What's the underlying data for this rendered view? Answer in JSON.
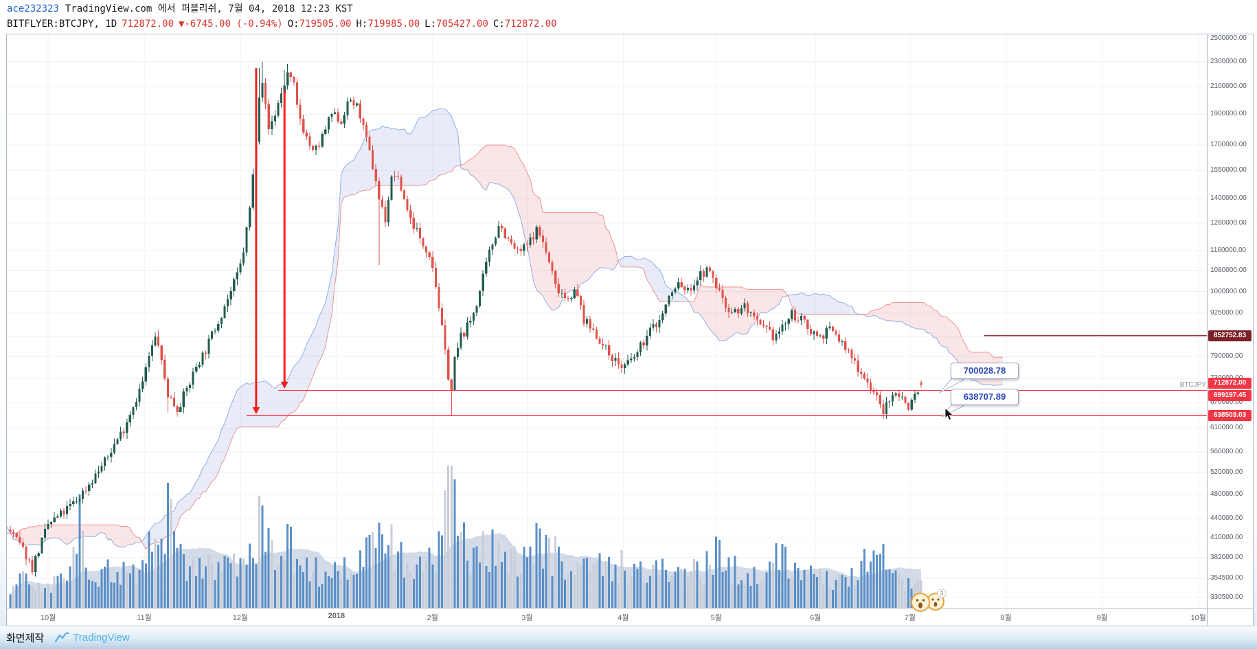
{
  "header": {
    "username": "ace232323",
    "publish_info": "TradingView.com 에서 퍼블리쉬, 7월 04, 2018 12:23 KST",
    "symbol": "BITFLYER:BTCJPY, 1D",
    "price": "712872.00",
    "change": "▼-6745.00 (-0.94%)",
    "ohlc": [
      {
        "k": "O:",
        "v": "719505.00"
      },
      {
        "k": "H:",
        "v": "719985.00"
      },
      {
        "k": "L:",
        "v": "705427.00"
      },
      {
        "k": "C:",
        "v": "712872.00"
      }
    ]
  },
  "footer": {
    "caption": "화면제작",
    "brand": "TradingView"
  },
  "chart_data": {
    "type": "candlestick",
    "symbol": "BITFLYER:BTCJPY",
    "interval": "1D",
    "scale": "log",
    "indicators": [
      "Ichimoku Cloud",
      "Volume",
      "Volume MA"
    ],
    "ohlc_readout": {
      "open": 719505.0,
      "high": 719985.0,
      "low": 705427.0,
      "close": 712872.0,
      "change": -6745.0,
      "change_pct": -0.94
    },
    "y_axis": {
      "top_price": 2537000,
      "bottom_price": 318400,
      "ticks": [
        2500000,
        2300000,
        2100000,
        1900000,
        1700000,
        1550000,
        1400000,
        1280000,
        1160000,
        1080000,
        1000000,
        925000,
        850000,
        790000,
        730000,
        670000,
        610000,
        560000,
        520000,
        480000,
        440000,
        410000,
        382000,
        354500,
        330500
      ]
    },
    "x_axis": {
      "labels": [
        {
          "text": "10월",
          "idx": 12
        },
        {
          "text": "11월",
          "idx": 42.5
        },
        {
          "text": "12월",
          "idx": 73
        },
        {
          "text": "2018",
          "idx": 103.5,
          "bold": true
        },
        {
          "text": "2월",
          "idx": 134
        },
        {
          "text": "3월",
          "idx": 164
        },
        {
          "text": "4월",
          "idx": 194.5
        },
        {
          "text": "5월",
          "idx": 224
        },
        {
          "text": "6월",
          "idx": 255.5
        },
        {
          "text": "7월",
          "idx": 285.5
        },
        {
          "text": "8월",
          "idx": 316
        },
        {
          "text": "9월",
          "idx": 346.5
        },
        {
          "text": "10월",
          "idx": 377
        }
      ]
    },
    "price_path": [
      [
        -90,
        320000
      ],
      [
        -80,
        305000
      ],
      [
        -70,
        330000
      ],
      [
        -62,
        370000
      ],
      [
        -55,
        420000
      ],
      [
        -48,
        470000
      ],
      [
        -42,
        520000
      ],
      [
        -38,
        490000
      ],
      [
        -34,
        440000
      ],
      [
        -30,
        400000
      ],
      [
        -27,
        358000
      ],
      [
        -25,
        338000
      ],
      [
        -23,
        378000
      ],
      [
        -20,
        408000
      ],
      [
        -17,
        392000
      ],
      [
        -14,
        410000
      ],
      [
        -10,
        428000
      ],
      [
        -7,
        442000
      ],
      [
        -4,
        430000
      ],
      [
        0,
        420000
      ],
      [
        3,
        400000
      ],
      [
        5,
        385000
      ],
      [
        7,
        368000
      ],
      [
        10,
        405000
      ],
      [
        12,
        430000
      ],
      [
        15,
        442000
      ],
      [
        18,
        455000
      ],
      [
        21,
        470000
      ],
      [
        24,
        490000
      ],
      [
        27,
        515000
      ],
      [
        30,
        540000
      ],
      [
        33,
        575000
      ],
      [
        36,
        610000
      ],
      [
        38,
        645000
      ],
      [
        40,
        680000
      ],
      [
        42,
        720000
      ],
      [
        44,
        790000
      ],
      [
        46,
        845000
      ],
      [
        47,
        830000
      ],
      [
        48,
        770000
      ],
      [
        50,
        690000
      ],
      [
        52,
        665000
      ],
      [
        53,
        655000
      ],
      [
        55,
        685000
      ],
      [
        57,
        720000
      ],
      [
        59,
        765000
      ],
      [
        62,
        810000
      ],
      [
        64,
        855000
      ],
      [
        66,
        900000
      ],
      [
        68,
        950000
      ],
      [
        70,
        1000000
      ],
      [
        72,
        1060000
      ],
      [
        73,
        1100000
      ],
      [
        74,
        1160000
      ],
      [
        75,
        1250000
      ],
      [
        76,
        1350000
      ],
      [
        77,
        1520000
      ],
      [
        78,
        1750000
      ],
      [
        79,
        2050000
      ],
      [
        80,
        2150000
      ],
      [
        81,
        1950000
      ],
      [
        82,
        1800000
      ],
      [
        83,
        1850000
      ],
      [
        84,
        1900000
      ],
      [
        85,
        1980000
      ],
      [
        86,
        2050000
      ],
      [
        87,
        2120000
      ],
      [
        88,
        2200000
      ],
      [
        89,
        2150000
      ],
      [
        90,
        2100000
      ],
      [
        91,
        1950000
      ],
      [
        93,
        1800000
      ],
      [
        95,
        1700000
      ],
      [
        96,
        1650000
      ],
      [
        98,
        1700000
      ],
      [
        99,
        1750000
      ],
      [
        100,
        1800000
      ],
      [
        102,
        1900000
      ],
      [
        104,
        1870000
      ],
      [
        105,
        1850000
      ],
      [
        106,
        1920000
      ],
      [
        108,
        2000000
      ],
      [
        110,
        1950000
      ],
      [
        111,
        1900000
      ],
      [
        112,
        1800000
      ],
      [
        114,
        1650000
      ],
      [
        116,
        1500000
      ],
      [
        117,
        1400000
      ],
      [
        118,
        1350000
      ],
      [
        119,
        1300000
      ],
      [
        120,
        1400000
      ],
      [
        121,
        1500000
      ],
      [
        122,
        1530000
      ],
      [
        124,
        1450000
      ],
      [
        126,
        1350000
      ],
      [
        127,
        1300000
      ],
      [
        129,
        1250000
      ],
      [
        130,
        1200000
      ],
      [
        132,
        1170000
      ],
      [
        133,
        1150000
      ],
      [
        134,
        1100000
      ],
      [
        136,
        950000
      ],
      [
        138,
        800000
      ],
      [
        139,
        740000
      ],
      [
        140,
        700000
      ],
      [
        141,
        780000
      ],
      [
        143,
        850000
      ],
      [
        145,
        880000
      ],
      [
        146,
        900000
      ],
      [
        148,
        960000
      ],
      [
        149,
        1000000
      ],
      [
        151,
        1100000
      ],
      [
        152,
        1150000
      ],
      [
        154,
        1230000
      ],
      [
        155,
        1280000
      ],
      [
        157,
        1230000
      ],
      [
        158,
        1200000
      ],
      [
        160,
        1170000
      ],
      [
        161,
        1150000
      ],
      [
        163,
        1170000
      ],
      [
        164,
        1180000
      ],
      [
        166,
        1230000
      ],
      [
        167,
        1250000
      ],
      [
        169,
        1200000
      ],
      [
        170,
        1150000
      ],
      [
        172,
        1070000
      ],
      [
        173,
        1020000
      ],
      [
        175,
        1000000
      ],
      [
        176,
        980000
      ],
      [
        178,
        990000
      ],
      [
        179,
        1000000
      ],
      [
        181,
        950000
      ],
      [
        182,
        900000
      ],
      [
        184,
        880000
      ],
      [
        185,
        870000
      ],
      [
        187,
        840000
      ],
      [
        188,
        820000
      ],
      [
        190,
        800000
      ],
      [
        191,
        790000
      ],
      [
        193,
        770000
      ],
      [
        194,
        760000
      ],
      [
        196,
        770000
      ],
      [
        197,
        780000
      ],
      [
        199,
        800000
      ],
      [
        200,
        820000
      ],
      [
        202,
        850000
      ],
      [
        203,
        870000
      ],
      [
        205,
        890000
      ],
      [
        206,
        900000
      ],
      [
        208,
        950000
      ],
      [
        209,
        980000
      ],
      [
        211,
        1010000
      ],
      [
        212,
        1030000
      ],
      [
        214,
        1010000
      ],
      [
        215,
        1000000
      ],
      [
        217,
        1030000
      ],
      [
        218,
        1050000
      ],
      [
        220,
        1070000
      ],
      [
        221,
        1080000
      ],
      [
        223,
        1050000
      ],
      [
        224,
        1020000
      ],
      [
        226,
        980000
      ],
      [
        227,
        950000
      ],
      [
        229,
        935000
      ],
      [
        230,
        930000
      ],
      [
        232,
        940000
      ],
      [
        233,
        950000
      ],
      [
        235,
        920000
      ],
      [
        236,
        900000
      ],
      [
        238,
        880000
      ],
      [
        239,
        870000
      ],
      [
        241,
        860000
      ],
      [
        242,
        850000
      ],
      [
        244,
        865000
      ],
      [
        245,
        880000
      ],
      [
        247,
        905000
      ],
      [
        248,
        920000
      ],
      [
        250,
        910000
      ],
      [
        251,
        900000
      ],
      [
        253,
        880000
      ],
      [
        254,
        870000
      ],
      [
        256,
        855000
      ],
      [
        257,
        850000
      ],
      [
        259,
        865000
      ],
      [
        260,
        870000
      ],
      [
        262,
        855000
      ],
      [
        263,
        840000
      ],
      [
        265,
        815000
      ],
      [
        266,
        800000
      ],
      [
        268,
        775000
      ],
      [
        269,
        760000
      ],
      [
        271,
        735000
      ],
      [
        272,
        720000
      ],
      [
        274,
        695000
      ],
      [
        275,
        680000
      ],
      [
        276,
        660000
      ],
      [
        277,
        650000
      ],
      [
        278,
        660000
      ],
      [
        279,
        670000
      ],
      [
        280,
        685000
      ],
      [
        281,
        700000
      ],
      [
        282,
        690000
      ],
      [
        283,
        680000
      ],
      [
        284,
        670000
      ],
      [
        285,
        660000
      ],
      [
        286,
        675000
      ],
      [
        287,
        690000
      ],
      [
        288,
        700000
      ],
      [
        289,
        712872
      ]
    ],
    "wick_overrides": [
      [
        46,
        "high",
        862000
      ],
      [
        50,
        "low",
        645000
      ],
      [
        79,
        "high",
        2245000
      ],
      [
        80,
        "high",
        2300000
      ],
      [
        87,
        "high",
        2230000
      ],
      [
        88,
        "high",
        2280000
      ],
      [
        117,
        "low",
        1100000
      ],
      [
        140,
        "low",
        638000
      ],
      [
        277,
        "low",
        640000
      ]
    ],
    "volume_path": [
      [
        0,
        0.18
      ],
      [
        4,
        0.22
      ],
      [
        8,
        0.15
      ],
      [
        12,
        0.18
      ],
      [
        16,
        0.25
      ],
      [
        20,
        0.5
      ],
      [
        22,
        0.75
      ],
      [
        24,
        0.4
      ],
      [
        28,
        0.25
      ],
      [
        32,
        0.3
      ],
      [
        36,
        0.3
      ],
      [
        40,
        0.28
      ],
      [
        44,
        0.5
      ],
      [
        47,
        0.45
      ],
      [
        50,
        0.85
      ],
      [
        53,
        0.5
      ],
      [
        56,
        0.3
      ],
      [
        60,
        0.35
      ],
      [
        64,
        0.3
      ],
      [
        68,
        0.35
      ],
      [
        72,
        0.4
      ],
      [
        76,
        0.5
      ],
      [
        80,
        0.7
      ],
      [
        83,
        0.45
      ],
      [
        86,
        0.4
      ],
      [
        88,
        0.5
      ],
      [
        90,
        0.45
      ],
      [
        93,
        0.35
      ],
      [
        96,
        0.3
      ],
      [
        100,
        0.28
      ],
      [
        104,
        0.3
      ],
      [
        108,
        0.32
      ],
      [
        112,
        0.4
      ],
      [
        115,
        0.45
      ],
      [
        117,
        0.55
      ],
      [
        120,
        0.5
      ],
      [
        122,
        0.45
      ],
      [
        126,
        0.35
      ],
      [
        130,
        0.32
      ],
      [
        134,
        0.35
      ],
      [
        137,
        0.6
      ],
      [
        140,
        1.0
      ],
      [
        142,
        0.55
      ],
      [
        145,
        0.45
      ],
      [
        148,
        0.4
      ],
      [
        151,
        0.45
      ],
      [
        153,
        0.5
      ],
      [
        155,
        0.45
      ],
      [
        158,
        0.4
      ],
      [
        161,
        0.38
      ],
      [
        164,
        0.42
      ],
      [
        167,
        0.5
      ],
      [
        170,
        0.48
      ],
      [
        173,
        0.42
      ],
      [
        176,
        0.38
      ],
      [
        179,
        0.35
      ],
      [
        182,
        0.38
      ],
      [
        185,
        0.35
      ],
      [
        188,
        0.32
      ],
      [
        191,
        0.3
      ],
      [
        194,
        0.35
      ],
      [
        197,
        0.3
      ],
      [
        200,
        0.28
      ],
      [
        203,
        0.3
      ],
      [
        206,
        0.28
      ],
      [
        209,
        0.3
      ],
      [
        212,
        0.32
      ],
      [
        215,
        0.28
      ],
      [
        218,
        0.3
      ],
      [
        221,
        0.32
      ],
      [
        224,
        0.45
      ],
      [
        227,
        0.35
      ],
      [
        230,
        0.3
      ],
      [
        234,
        0.28
      ],
      [
        238,
        0.3
      ],
      [
        242,
        0.35
      ],
      [
        245,
        0.4
      ],
      [
        248,
        0.35
      ],
      [
        251,
        0.3
      ],
      [
        254,
        0.25
      ],
      [
        257,
        0.22
      ],
      [
        260,
        0.25
      ],
      [
        263,
        0.22
      ],
      [
        266,
        0.28
      ],
      [
        269,
        0.3
      ],
      [
        272,
        0.35
      ],
      [
        275,
        0.38
      ],
      [
        277,
        0.42
      ],
      [
        280,
        0.3
      ],
      [
        283,
        0.25
      ],
      [
        286,
        0.22
      ],
      [
        289,
        0.2
      ]
    ],
    "volume_spikes": [
      [
        22,
        0.8
      ],
      [
        50,
        0.88
      ],
      [
        80,
        0.72
      ],
      [
        117,
        0.6
      ],
      [
        140,
        1.0
      ],
      [
        153,
        0.55
      ],
      [
        224,
        0.5
      ],
      [
        245,
        0.45
      ],
      [
        277,
        0.45
      ]
    ],
    "levels": [
      {
        "price": 852752.83,
        "label": "852752.83",
        "badge_color": "#7c2128",
        "line_color": "#993540",
        "from_idx": 309,
        "label_dy": 0
      },
      {
        "price": 699197.45,
        "label": "699197.45",
        "badge_color": "#f23645",
        "line_color": "#f23645",
        "from_idx": 85,
        "label_dy": 7
      },
      {
        "price": 638503.03,
        "label": "638503.03",
        "badge_color": "#f23645",
        "line_color": "#f23645",
        "from_idx": 75,
        "label_dy": 0
      }
    ],
    "last_price": {
      "label": "712872.00",
      "price": 712872,
      "badge_color": "#f23645",
      "label_dy": -3
    },
    "arrows": [
      {
        "idx": 78,
        "from_price": 2245000,
        "to_price": 642000
      },
      {
        "idx": 87,
        "from_price": 2075000,
        "to_price": 704000
      }
    ],
    "callouts": [
      {
        "text": "700028.78"
      },
      {
        "text": "638707.89"
      }
    ],
    "symbol_label": "BTCJPY",
    "stickers": {
      "count": "3"
    },
    "colors": {
      "up": "#215c4f",
      "down": "#e0524c",
      "cloud_up": "rgba(82,112,204,0.13)",
      "cloud_down": "rgba(226,84,94,0.15)",
      "senkou_a": "#4a7fd4",
      "senkou_b": "#e2544e",
      "vol_blue": "#5b8fc7",
      "vol_gray": "#c8cdd7",
      "vol_ma": "rgba(156,176,202,0.45)",
      "annotation": "#f51d1d",
      "accent_link": "#2065cf",
      "header_red": "#d9332e"
    }
  }
}
